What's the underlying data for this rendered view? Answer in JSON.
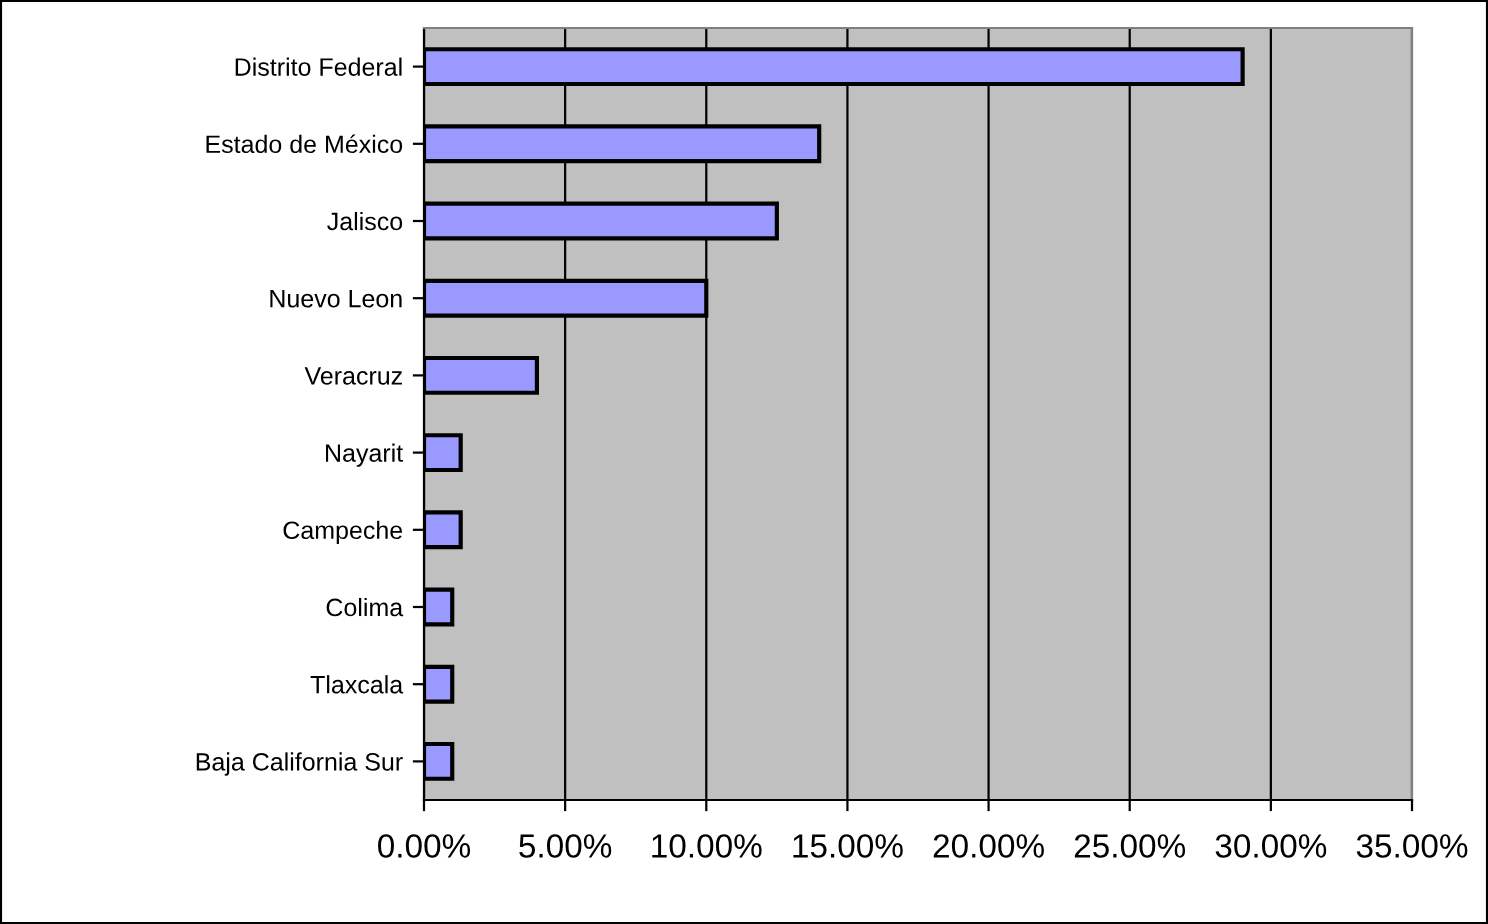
{
  "chart_data": {
    "type": "bar",
    "orientation": "horizontal",
    "categories": [
      "Distrito Federal",
      "Estado de México",
      "Jalisco",
      "Nuevo Leon",
      "Veracruz",
      "Nayarit",
      "Campeche",
      "Colima",
      "Tlaxcala",
      "Baja California Sur"
    ],
    "values": [
      29.0,
      14.0,
      12.5,
      10.0,
      4.0,
      1.3,
      1.3,
      1.0,
      1.0,
      1.0
    ],
    "color": "#9999ff",
    "xlim": [
      0,
      35
    ],
    "xticks": [
      {
        "value": 0,
        "label": "0.00%"
      },
      {
        "value": 5,
        "label": "5.00%"
      },
      {
        "value": 10,
        "label": "10.00%"
      },
      {
        "value": 15,
        "label": "15.00%"
      },
      {
        "value": 20,
        "label": "20.00%"
      },
      {
        "value": 25,
        "label": "25.00%"
      },
      {
        "value": 30,
        "label": "30.00%"
      },
      {
        "value": 35,
        "label": "35.00%"
      }
    ],
    "grid": "x"
  }
}
